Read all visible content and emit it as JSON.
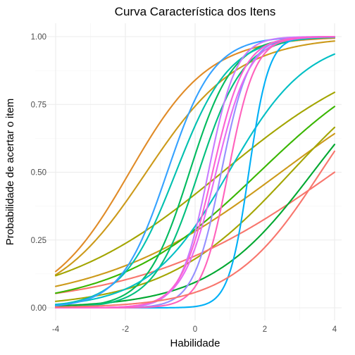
{
  "chart_data": {
    "type": "line",
    "title": "Curva Característica dos Itens",
    "xlabel": "Habilidade",
    "ylabel": "Probabilidade de acertar o item",
    "xlim": [
      -4,
      4
    ],
    "ylim": [
      0,
      1
    ],
    "x_ticks": [
      -4,
      -2,
      0,
      2,
      4
    ],
    "y_ticks": [
      0,
      0.25,
      0.5,
      0.75,
      1
    ],
    "x_tick_labels": [
      "-4",
      "-2",
      "0",
      "2",
      "4"
    ],
    "y_tick_labels": [
      "0.00",
      "0.25",
      "0.50",
      "0.75",
      "1.00"
    ],
    "grid": true,
    "legend": "none",
    "model": "2PL logistic: P(theta) = 1 / (1 + exp(-a * (theta - b)))",
    "series": [
      {
        "a": 0.88,
        "b": -1.88,
        "color": "#E08B27"
      },
      {
        "a": 0.76,
        "b": -1.4,
        "color": "#CC9A1A"
      },
      {
        "a": 0.38,
        "b": 2.46,
        "color": "#CC9A1A"
      },
      {
        "a": 0.42,
        "b": 0.78,
        "color": "#A3A500"
      },
      {
        "a": 0.55,
        "b": 2.75,
        "color": "#A3A500"
      },
      {
        "a": 0.36,
        "b": 4.0,
        "color": "#F8766D"
      },
      {
        "a": 0.49,
        "b": 1.84,
        "color": "#39B600"
      },
      {
        "a": 0.67,
        "b": 3.38,
        "color": "#00A831"
      },
      {
        "a": 1.6,
        "b": -0.16,
        "color": "#00BA5E"
      },
      {
        "a": 1.55,
        "b": 0.1,
        "color": "#00BF7D"
      },
      {
        "a": 1.3,
        "b": -0.55,
        "color": "#00C0AF"
      },
      {
        "a": 0.88,
        "b": 0.96,
        "color": "#00BFC4"
      },
      {
        "a": 3.47,
        "b": 1.54,
        "color": "#00B0F6"
      },
      {
        "a": 1.5,
        "b": -0.8,
        "color": "#35A2FF"
      },
      {
        "a": 2.5,
        "b": 0.75,
        "color": "#9590FF"
      },
      {
        "a": 2.5,
        "b": 0.38,
        "color": "#C77CFF"
      },
      {
        "a": 2.1,
        "b": 0.6,
        "color": "#E76BF3"
      },
      {
        "a": 2.6,
        "b": 0.95,
        "color": "#FF62BC"
      },
      {
        "a": 2.2,
        "b": 0.5,
        "color": "#FD61D1"
      },
      {
        "a": 0.78,
        "b": 3.6,
        "color": "#F8766D"
      }
    ]
  }
}
